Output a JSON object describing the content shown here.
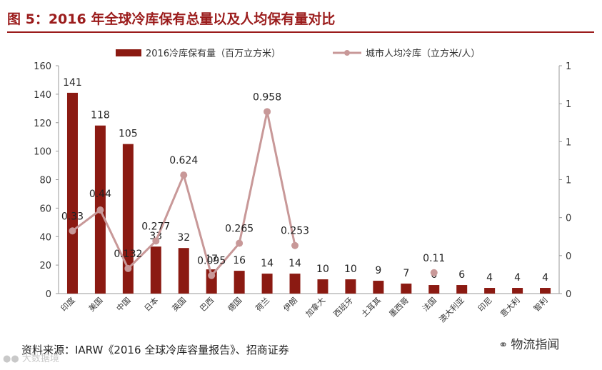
{
  "title": "图 5：2016 年全球冷库保有总量以及人均保有量对比",
  "source": "资料来源：IARW《2016 全球冷库容量报告》、招商证券",
  "watermark_right": "物流指闻",
  "watermark_left": "大数据境",
  "colors": {
    "title": "#9b1c1c",
    "bar": "#8b1a12",
    "line": "#c89898"
  },
  "chart_data": {
    "type": "bar",
    "legend_position": "top",
    "categories": [
      "印度",
      "美国",
      "中国",
      "日本",
      "英国",
      "巴西",
      "德国",
      "荷兰",
      "伊朗",
      "加拿大",
      "西班牙",
      "土耳其",
      "墨西哥",
      "法国",
      "澳大利亚",
      "印尼",
      "意大利",
      "智利"
    ],
    "series": [
      {
        "name": "2016冷库保有量（百万立方米）",
        "type": "bar",
        "axis": "left",
        "values": [
          141,
          118,
          105,
          33,
          32,
          17,
          16,
          14,
          14,
          10,
          10,
          9,
          7,
          6,
          6,
          4,
          4,
          4
        ],
        "labels": [
          "141",
          "118",
          "105",
          "33",
          "32",
          "17",
          "16",
          "14",
          "14",
          "10",
          "10",
          "9",
          "7",
          "6",
          "6",
          "4",
          "4",
          "4"
        ]
      },
      {
        "name": "城市人均冷库（立方米/人）",
        "type": "line",
        "axis": "right",
        "values": [
          0.33,
          0.44,
          0.132,
          0.277,
          0.624,
          0.095,
          0.265,
          0.958,
          0.253,
          null,
          null,
          null,
          null,
          0.11,
          null,
          null,
          null,
          null
        ],
        "labels": [
          "0.33",
          "0.44",
          "0.132",
          "0.277",
          "0.624",
          "0.095",
          "0.265",
          "0.958",
          "0.253",
          "",
          "",
          "",
          "",
          "0.11",
          "",
          "",
          "",
          ""
        ]
      }
    ],
    "y_left": {
      "min": 0,
      "max": 160,
      "ticks": [
        0,
        20,
        40,
        60,
        80,
        100,
        120,
        140,
        160
      ]
    },
    "y_right": {
      "min": 0,
      "max": 1.2,
      "tick_values": [
        0,
        0.2,
        0.4,
        0.6,
        0.8,
        1.0,
        1.2
      ],
      "tick_labels": [
        "0",
        "0",
        "0",
        "1",
        "1",
        "1",
        "1"
      ]
    }
  }
}
